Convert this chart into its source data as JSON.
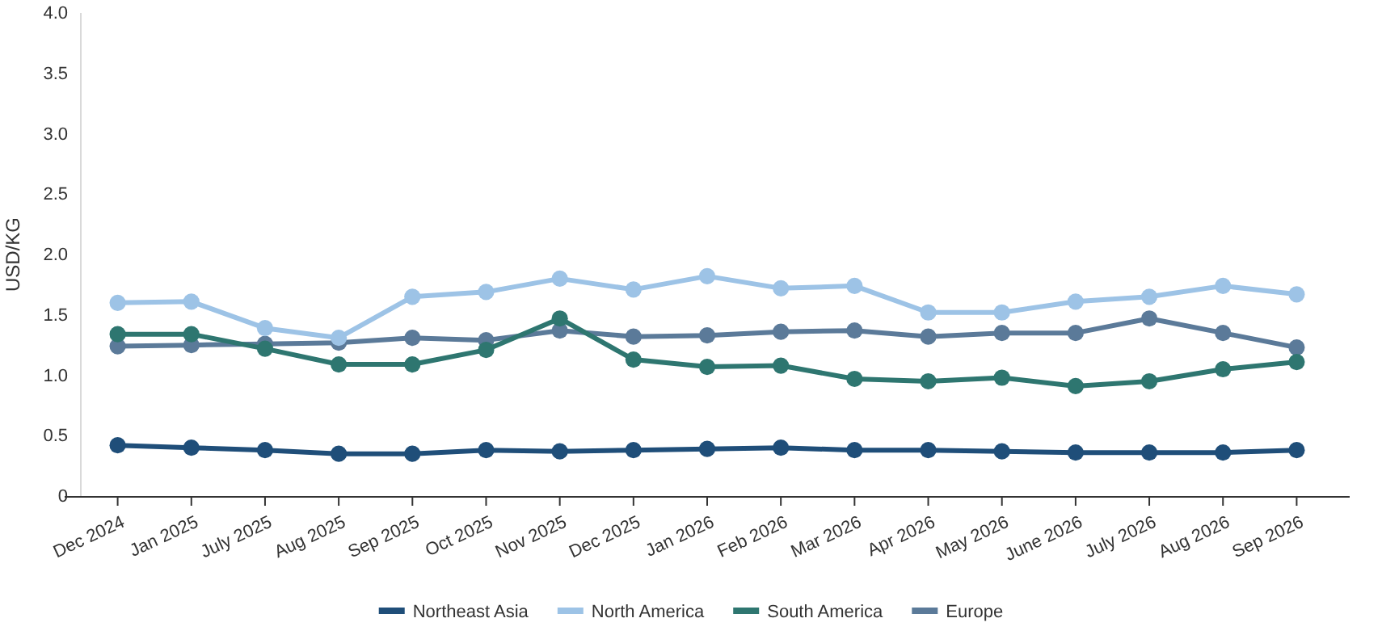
{
  "chart_data": {
    "type": "line",
    "ylabel": "USD/KG",
    "categories": [
      "Dec 2024",
      "Jan 2025",
      "July 2025",
      "Aug 2025",
      "Sep 2025",
      "Oct 2025",
      "Nov 2025",
      "Dec 2025",
      "Jan 2026",
      "Feb 2026",
      "Mar 2026",
      "Apr 2026",
      "May 2026",
      "June 2026",
      "July 2026",
      "Aug 2026",
      "Sep 2026"
    ],
    "series": [
      {
        "name": "Northeast Asia",
        "color": "#1f4e79",
        "values": [
          0.42,
          0.4,
          0.38,
          0.35,
          0.35,
          0.38,
          0.37,
          0.38,
          0.39,
          0.4,
          0.38,
          0.38,
          0.37,
          0.36,
          0.36,
          0.36,
          0.38
        ]
      },
      {
        "name": "North America",
        "color": "#9dc3e6",
        "values": [
          1.6,
          1.61,
          1.39,
          1.31,
          1.65,
          1.69,
          1.8,
          1.71,
          1.82,
          1.72,
          1.74,
          1.52,
          1.52,
          1.61,
          1.65,
          1.74,
          1.67
        ]
      },
      {
        "name": "South America",
        "color": "#2e7670",
        "values": [
          1.34,
          1.34,
          1.22,
          1.09,
          1.09,
          1.21,
          1.47,
          1.13,
          1.07,
          1.08,
          0.97,
          0.95,
          0.98,
          0.91,
          0.95,
          1.05,
          1.11
        ]
      },
      {
        "name": "Europe",
        "color": "#5b7a99",
        "values": [
          1.24,
          1.25,
          1.26,
          1.27,
          1.31,
          1.29,
          1.37,
          1.32,
          1.33,
          1.36,
          1.37,
          1.32,
          1.35,
          1.35,
          1.47,
          1.35,
          1.23
        ]
      }
    ],
    "ylim": [
      0,
      4
    ],
    "yticks": [
      0,
      {
        "value": 0.5,
        "label": "0.5"
      },
      {
        "value": 1,
        "label": "1.0"
      },
      {
        "value": 1.5,
        "label": "1.5"
      },
      {
        "value": 2,
        "label": "2.0"
      },
      {
        "value": 2.5,
        "label": "2.5"
      },
      {
        "value": 3,
        "label": "3.0"
      },
      {
        "value": 3.5,
        "label": "3.5"
      },
      {
        "value": 4,
        "label": "4.0"
      }
    ],
    "marker": "circle",
    "line_style": "solid",
    "legend": "bottom",
    "grid": false
  }
}
